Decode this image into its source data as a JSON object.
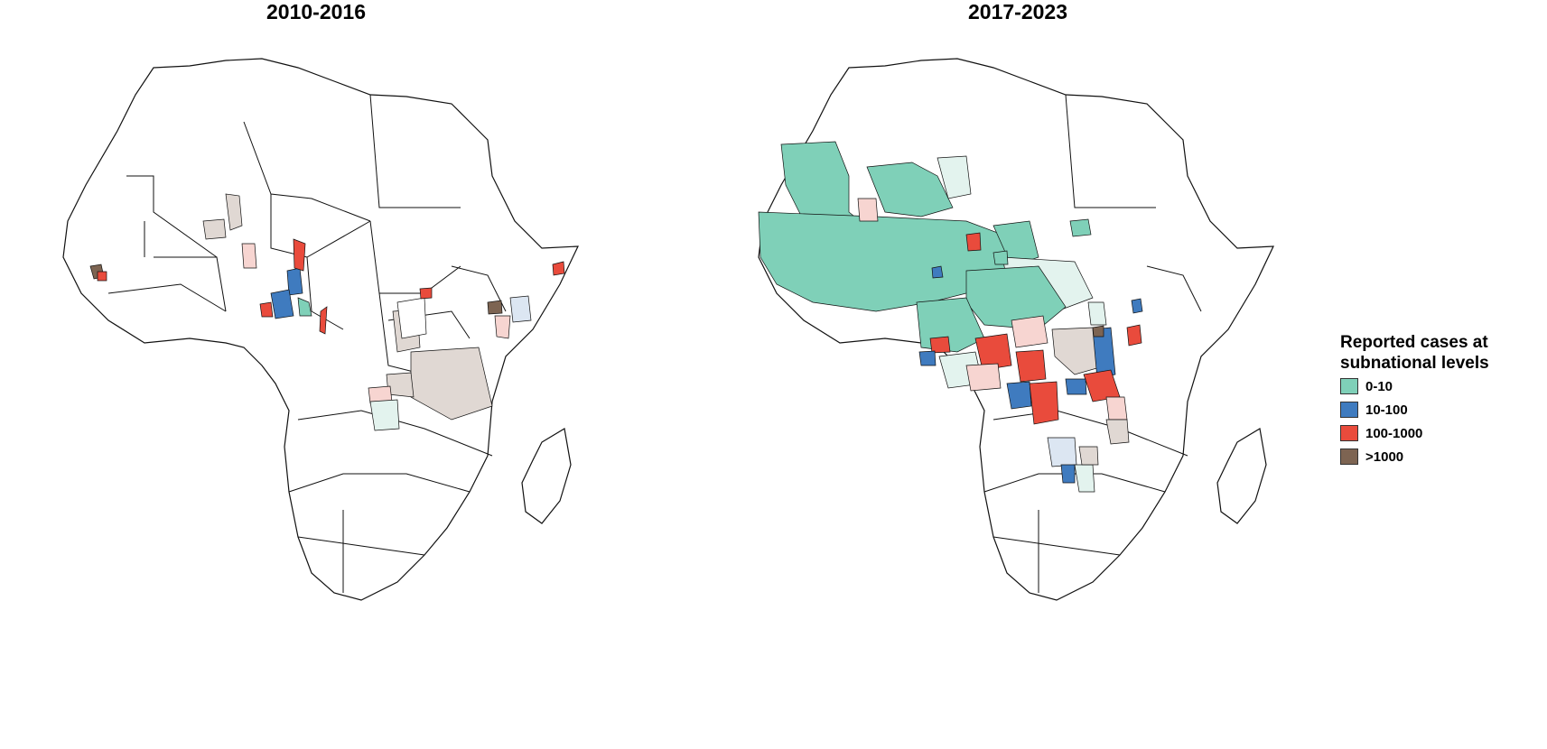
{
  "panels": [
    {
      "title": "2010-2016"
    },
    {
      "title": "2017-2023"
    }
  ],
  "legend": {
    "title_line1": "Reported cases at",
    "title_line2": "subnational levels",
    "items": [
      {
        "label": "0-10",
        "color": "#7fd0b8"
      },
      {
        "label": "10-100",
        "color": "#3f7bbf"
      },
      {
        "label": "100-1000",
        "color": "#e94b3c"
      },
      {
        "label": ">1000",
        "color": "#7d6452"
      }
    ]
  },
  "colors": {
    "very_light_cat1": "#e3f3ee",
    "very_light_cat2": "#dce6f2",
    "very_light_cat3": "#f7d5d1",
    "very_light_cat4": "#e0d8d3"
  }
}
